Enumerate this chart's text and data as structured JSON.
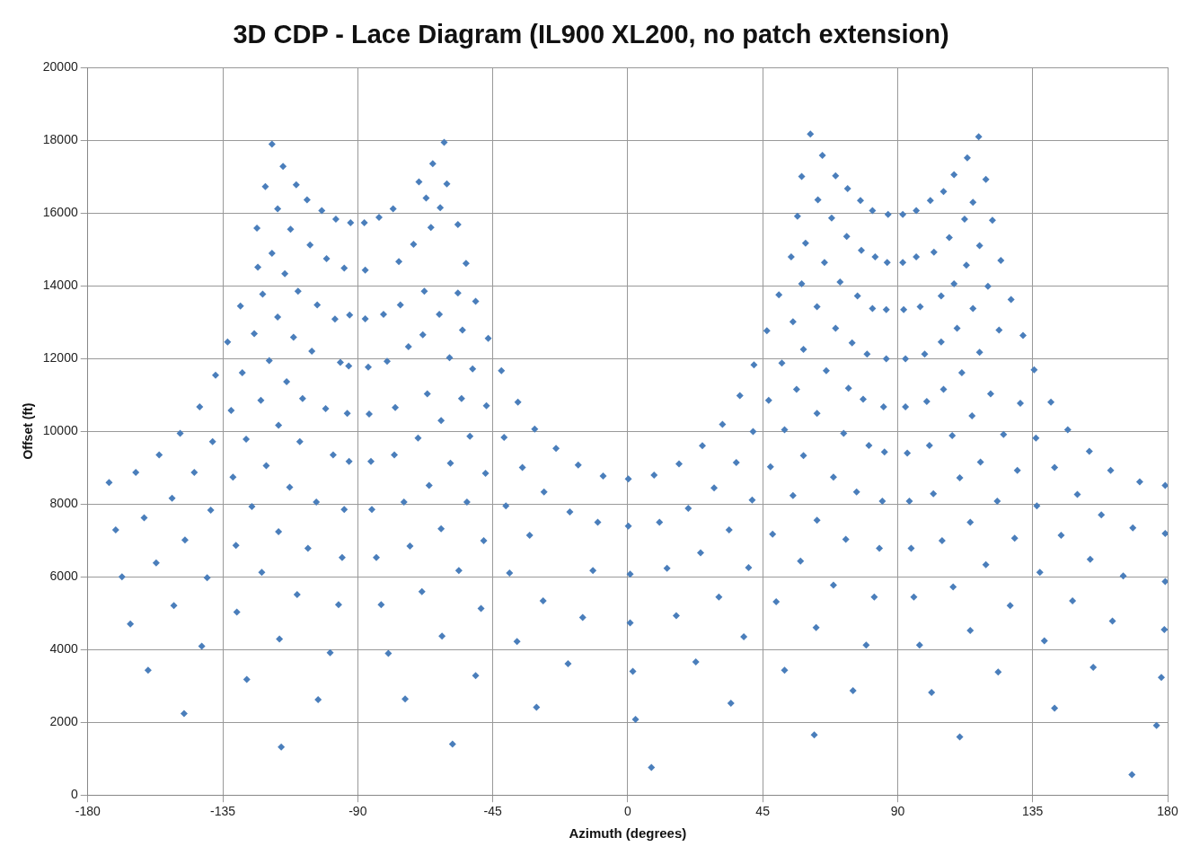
{
  "chart_data": {
    "type": "scatter",
    "title": "3D CDP - Lace Diagram (IL900 XL200, no patch extension)",
    "xlabel": "Azimuth (degrees)",
    "ylabel": "Offset (ft)",
    "xlim": [
      -180,
      180
    ],
    "xticks": [
      -180,
      -135,
      -90,
      -45,
      0,
      45,
      90,
      135,
      180
    ],
    "ylim": [
      0,
      20000
    ],
    "yticks": [
      0,
      2000,
      4000,
      6000,
      8000,
      10000,
      12000,
      14000,
      16000,
      18000,
      20000
    ],
    "grid": true,
    "legend": false,
    "marker": "diamond",
    "series": [
      {
        "color": "#4a7ebb",
        "x": [
          -172.9,
          -170.7,
          -168.6,
          -165.8,
          -159.9,
          -164,
          -161.2,
          -157.2,
          -156.2,
          -151.9,
          -151.3,
          -147.6,
          -147.9,
          -149.2,
          -144.5,
          -142.7,
          -142,
          -140.2,
          -139,
          -138.4,
          -137.4,
          -133.4,
          -132.2,
          -131.6,
          -130.6,
          -130.3,
          -127,
          -129.1,
          -128.5,
          -127.2,
          -125.3,
          -124.5,
          -123.6,
          -123.3,
          -122.3,
          -122,
          -120.8,
          -121.7,
          -120.5,
          -119.5,
          -118.6,
          -116.7,
          -118.6,
          -116.7,
          -116.4,
          -116.4,
          -116.1,
          -115.5,
          -114.9,
          -114.3,
          -113.7,
          -112.7,
          -112.4,
          -111.4,
          -110.5,
          -110.2,
          -109.9,
          -109.3,
          -108.4,
          -106.9,
          -106.6,
          -105.9,
          -105.3,
          -103.8,
          -103.5,
          -103.2,
          -102,
          -100.7,
          -100.4,
          -99.2,
          -98.2,
          -97.6,
          -96.4,
          -97.3,
          -95.8,
          -95.2,
          -94.5,
          -94.5,
          -93.5,
          -92.9,
          -92.7,
          -93,
          -92.4,
          -87.8,
          -87.5,
          -87.5,
          -86.5,
          -86.2,
          -85.6,
          -85.3,
          -83.8,
          -82.2,
          -79.8,
          -74.2,
          -82.9,
          -81.4,
          -80.2,
          -77.8,
          -77.5,
          -76.3,
          -74.6,
          -78.2,
          -75.8,
          -73.1,
          -72.6,
          -71.4,
          -69.9,
          -68.6,
          -68.3,
          -67.2,
          -67.8,
          -66.8,
          -66.2,
          -65.6,
          -69.6,
          -65,
          -62.5,
          -62.8,
          -62.2,
          -62.2,
          -61.9,
          -61.2,
          -60.3,
          -59.4,
          -59.1,
          -58.4,
          -56.6,
          -56.6,
          -56.3,
          -55.1,
          -55.4,
          -53.9,
          -53.6,
          -52.6,
          -51.7,
          -50.7,
          -50.7,
          -48.9,
          -48,
          -47.4,
          -47.1,
          -46.5,
          -42.1,
          -41.2,
          -40.6,
          -39.4,
          -36.9,
          -36.6,
          -35.1,
          -32.7,
          -30.4,
          -31,
          -28.2,
          -27.9,
          -23.9,
          -19.3,
          -19.9,
          -16.5,
          -15,
          -10,
          -8.2,
          -11.6,
          0.2,
          0.2,
          0.8,
          0.8,
          1.7,
          2.6,
          7.9,
          8.8,
          10.6,
          13.1,
          16.2,
          17.1,
          20.2,
          22.7,
          24.9,
          24.3,
          28.8,
          30.4,
          31.6,
          34.4,
          33.8,
          36.2,
          37.4,
          38.7,
          40.3,
          41.5,
          41.8,
          42.1,
          46.4,
          47,
          47.6,
          48.3,
          49.5,
          52.3,
          50.4,
          51.4,
          52.3,
          54.5,
          55.1,
          55.1,
          56.3,
          56.6,
          57.6,
          58,
          58,
          58.6,
          58.6,
          59.3,
          60.9,
          62.2,
          62.8,
          63.1,
          63.1,
          63.1,
          63.4,
          64.9,
          65.6,
          66.2,
          68,
          68.6,
          68.6,
          69.3,
          69.3,
          70.8,
          72,
          73,
          73.3,
          73.6,
          72.7,
          75.1,
          74.8,
          76.3,
          76.6,
          77.6,
          77.9,
          78.5,
          79.5,
          79.8,
          80.4,
          81.6,
          81.6,
          82.5,
          82.2,
          83.9,
          84.9,
          85.3,
          85.6,
          86.2,
          86.2,
          86.5,
          86.8,
          91.7,
          91.7,
          92,
          92.6,
          92.6,
          93.2,
          93.9,
          94.5,
          95.4,
          97.3,
          101.3,
          96.2,
          96.2,
          97.5,
          99,
          99.7,
          100.6,
          101.9,
          100.9,
          102.1,
          104.5,
          104.5,
          104.8,
          105.3,
          105.3,
          107.2,
          108.2,
          108.5,
          108.8,
          108.8,
          109.8,
          110.7,
          110.7,
          111.4,
          112.3,
          112.9,
          113.2,
          114.2,
          114.2,
          114.8,
          115.1,
          115.1,
          117,
          117.3,
          117.3,
          117.6,
          119.4,
          119.4,
          120.1,
          121,
          121.6,
          123.2,
          123.8,
          123.5,
          124.4,
          125.3,
          127.5,
          127.8,
          129,
          129.9,
          130.9,
          131.8,
          135.5,
          136.1,
          136.4,
          137.4,
          138.9,
          141.1,
          142.3,
          142.3,
          144.5,
          146.7,
          148.3,
          149.9,
          153.9,
          155.2,
          154.2,
          157.9,
          161,
          161.6,
          165.2,
          168.1,
          168.4,
          170.7,
          176.3,
          177.9,
          178.9,
          179.2,
          179.2,
          179.2
        ],
        "values": [
          8590,
          7290,
          6000,
          4700,
          3430,
          8870,
          7620,
          6380,
          9350,
          8160,
          5210,
          7010,
          2240,
          9940,
          8870,
          10670,
          4090,
          5970,
          7830,
          9710,
          11540,
          12450,
          10570,
          8740,
          6860,
          5030,
          3180,
          13440,
          11610,
          9780,
          7930,
          12680,
          15580,
          14510,
          10850,
          6120,
          16720,
          13770,
          9050,
          11940,
          17890,
          16110,
          14890,
          13140,
          10160,
          7240,
          4290,
          1320,
          17280,
          14330,
          11360,
          8460,
          15550,
          12580,
          16770,
          5510,
          13850,
          9710,
          10900,
          16360,
          6780,
          15120,
          12200,
          8050,
          13470,
          2620,
          16060,
          10620,
          14740,
          3910,
          9350,
          13080,
          5230,
          15830,
          11890,
          6530,
          14480,
          7850,
          10490,
          9170,
          13190,
          11790,
          15730,
          15730,
          14430,
          13090,
          11760,
          10470,
          9170,
          7850,
          6530,
          5230,
          3890,
          2640,
          15880,
          13210,
          11920,
          9350,
          10650,
          14660,
          8050,
          16110,
          13470,
          12320,
          6840,
          15140,
          9810,
          5590,
          12650,
          16410,
          13850,
          11030,
          8510,
          15600,
          16850,
          17350,
          16140,
          13210,
          10290,
          7320,
          4370,
          17940,
          16800,
          12020,
          9120,
          1400,
          15680,
          13800,
          6170,
          12780,
          10900,
          14610,
          8050,
          9860,
          11710,
          13570,
          3280,
          5130,
          6990,
          8840,
          10700,
          12550,
          11660,
          9830,
          7950,
          6100,
          4220,
          10800,
          9000,
          7140,
          2410,
          10060,
          5340,
          8330,
          9530,
          7780,
          3610,
          9070,
          4880,
          7500,
          8770,
          6170,
          8690,
          7390,
          6070,
          4730,
          3400,
          2080,
          760,
          8790,
          7500,
          6230,
          4930,
          9100,
          7880,
          3660,
          9600,
          6660,
          8440,
          5440,
          10190,
          2520,
          7290,
          9140,
          10980,
          4350,
          6250,
          8110,
          9990,
          11820,
          12760,
          10850,
          9020,
          7170,
          5310,
          3430,
          13750,
          11870,
          10040,
          14790,
          8230,
          13010,
          11150,
          15910,
          6430,
          17000,
          14050,
          12250,
          9330,
          15170,
          18170,
          1650,
          4600,
          7550,
          10490,
          13420,
          16360,
          17580,
          14640,
          11660,
          15860,
          5770,
          8740,
          12830,
          17020,
          14100,
          9940,
          15350,
          16670,
          11180,
          7030,
          2870,
          12430,
          8330,
          13720,
          16340,
          14970,
          10880,
          4120,
          12120,
          9610,
          16060,
          13370,
          14790,
          5440,
          6780,
          8080,
          10670,
          9430,
          11990,
          13340,
          14640,
          15960,
          15960,
          14640,
          13340,
          11990,
          10670,
          9400,
          8080,
          6780,
          5440,
          4120,
          2820,
          16060,
          14790,
          13420,
          12120,
          10820,
          9610,
          8280,
          16340,
          14920,
          12450,
          13720,
          6990,
          16590,
          11150,
          15320,
          9880,
          5720,
          17050,
          14050,
          12830,
          8720,
          1600,
          11610,
          15830,
          14560,
          17510,
          4520,
          7500,
          10420,
          13370,
          16290,
          18090,
          12170,
          15100,
          9150,
          16920,
          6330,
          13980,
          11030,
          15800,
          8080,
          12780,
          3380,
          14690,
          9910,
          5210,
          13620,
          7060,
          8920,
          10770,
          12630,
          11690,
          9810,
          7950,
          6120,
          4240,
          10800,
          9000,
          2390,
          7140,
          10040,
          5340,
          8260,
          9450,
          3510,
          6480,
          7700,
          8920,
          4780,
          6020,
          560,
          7340,
          8610,
          1910,
          3230,
          4550,
          5870,
          7190,
          8510
        ]
      }
    ]
  }
}
